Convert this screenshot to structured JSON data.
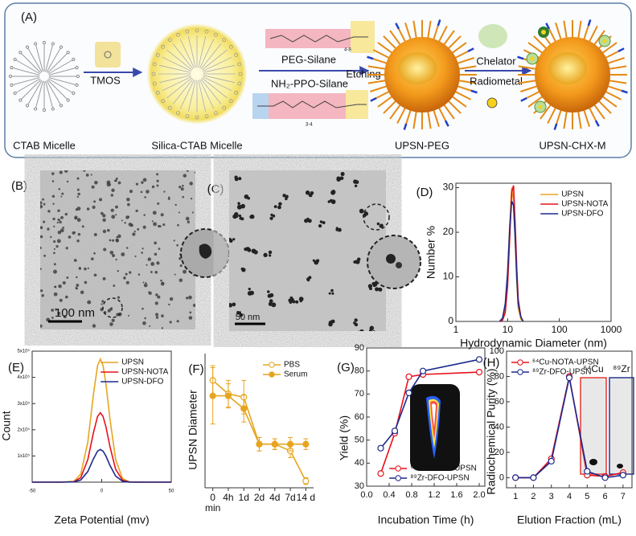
{
  "schematic": {
    "panel_a": {
      "label": "(A)",
      "tmos": "TMOS",
      "peg_silane": "PEG-Silane",
      "etching": "Etching",
      "ppo_silane": "NH₂-PPO-Silane",
      "peg_repeat": "4-8",
      "ppo_repeat": "3-4",
      "chelator": "Chelator",
      "radiometal": "Radiometal",
      "captions": [
        "CTAB Micelle",
        "Silica-CTAB Micelle",
        "UPSN-PEG",
        "UPSN-CHX-M"
      ]
    },
    "panel_b": {
      "label": "(B)",
      "scale": "100 nm"
    },
    "panel_c": {
      "label": "(C)",
      "scale": "50 nm"
    }
  },
  "chart_data": [
    {
      "panel": "(D)",
      "type": "line",
      "xscale": "log",
      "frame": "box",
      "x": [
        7,
        8,
        9,
        10,
        11,
        12,
        13,
        14,
        15,
        16,
        18,
        20
      ],
      "xlim": [
        1,
        1000
      ],
      "xticks": [
        1,
        10,
        100,
        1000
      ],
      "ylim": [
        0,
        31
      ],
      "yticks": [
        0,
        10,
        20,
        30
      ],
      "xlabel": "Hydrodynamic Diameter (nm)",
      "ylabel": "Number %",
      "legend": "top-right",
      "series": [
        {
          "name": "UPSN",
          "color": "#e6a520",
          "values": [
            0,
            0.5,
            3,
            10,
            22,
            30,
            27,
            18,
            9,
            3,
            0.5,
            0
          ]
        },
        {
          "name": "UPSN-NOTA",
          "color": "#e8101a",
          "values": [
            0,
            0.3,
            2,
            8,
            19,
            29,
            30.5,
            22,
            12,
            5,
            1,
            0
          ]
        },
        {
          "name": "UPSN-DFO",
          "color": "#1c2a8c",
          "values": [
            0,
            0.8,
            4,
            11,
            21,
            27,
            26,
            19,
            10,
            4,
            1,
            0
          ]
        }
      ]
    },
    {
      "panel": "(E)",
      "type": "line",
      "frame": "box",
      "x": [
        -50,
        -30,
        -20,
        -15,
        -10,
        -6,
        -3,
        -1,
        1,
        3,
        6,
        10,
        15,
        20,
        30,
        50
      ],
      "xlim": [
        -50,
        50
      ],
      "xticks": [
        -50,
        0,
        50
      ],
      "ylim": [
        0,
        500000
      ],
      "yticks": [
        {
          "value": 100000,
          "label": "1x10⁵"
        },
        {
          "value": 200000,
          "label": "2x10⁵"
        },
        {
          "value": 300000,
          "label": "3x10⁵"
        },
        {
          "value": 400000,
          "label": "4x10⁵"
        },
        {
          "value": 500000,
          "label": "5x10⁵"
        }
      ],
      "xlabel": "Zeta Potential (mv)",
      "ylabel": "Count",
      "legend": "top-right",
      "series": [
        {
          "name": "UPSN",
          "color": "#e6a520",
          "values": [
            0,
            0,
            3150,
            31000,
            152800,
            332300,
            444600,
            470000,
            444600,
            376000,
            237800,
            87400,
            13400,
            1000,
            0,
            0
          ]
        },
        {
          "name": "UPSN-NOTA",
          "color": "#e8101a",
          "values": [
            0,
            0,
            1800,
            17500,
            86100,
            187400,
            250700,
            265000,
            250700,
            212000,
            134100,
            49300,
            7600,
            600,
            0,
            0
          ]
        },
        {
          "name": "UPSN-DFO",
          "color": "#1c2a8c",
          "values": [
            0,
            0,
            800,
            8300,
            40600,
            88400,
            118300,
            125000,
            118300,
            100000,
            63300,
            23300,
            3600,
            300,
            0,
            0
          ]
        }
      ]
    },
    {
      "panel": "(F)",
      "type": "line",
      "frame": "open",
      "categories": [
        "0\nmin",
        "4h",
        "1d",
        "2d",
        "4d",
        "7d",
        "14 d"
      ],
      "ylim": [
        0,
        20
      ],
      "ylabel": "UPSN Diameter",
      "legend": "top-right",
      "series": [
        {
          "name": "PBS",
          "color": "#e6a520",
          "marker": "open",
          "values": [
            16,
            14,
            13.5,
            6.5,
            6.5,
            5.5,
            1
          ],
          "error": [
            2.2,
            2,
            2.5,
            1,
            0.8,
            1,
            0.5
          ]
        },
        {
          "name": "Serum",
          "color": "#e6a520",
          "marker": "filled",
          "values": [
            13.7,
            13.7,
            11.8,
            6.5,
            6.5,
            6.5,
            6.5
          ],
          "error": [
            4.2,
            1.8,
            2,
            1,
            0.8,
            1,
            0.8
          ]
        }
      ]
    },
    {
      "panel": "(G)",
      "type": "line",
      "frame": "box",
      "x": [
        0.25,
        0.5,
        0.75,
        1,
        2
      ],
      "xlim": [
        0,
        2.1
      ],
      "xticks": [
        {
          "value": 0,
          "label": "0.0"
        },
        0.4,
        0.8,
        1.2,
        1.6,
        {
          "value": 2,
          "label": "2.0"
        }
      ],
      "ylim": [
        30,
        90
      ],
      "yticks": [
        30,
        40,
        50,
        60,
        70,
        80,
        90
      ],
      "xlabel": "Incubation Time (h)",
      "ylabel": "Yield (%)",
      "legend": "bottom-right",
      "series": [
        {
          "name": "⁶⁴Cu-NOTA-UPSN",
          "color": "#e8101a",
          "marker": "open",
          "values": [
            35.5,
            53,
            77.5,
            78.5,
            79.5
          ]
        },
        {
          "name": "⁸⁹Zr-DFO-UPSN",
          "color": "#1c2a8c",
          "marker": "open",
          "values": [
            46.5,
            54,
            70.5,
            80,
            85
          ]
        }
      ]
    },
    {
      "panel": "(H)",
      "type": "line",
      "frame": "box",
      "x": [
        1,
        2,
        3,
        4,
        5,
        6,
        7
      ],
      "xlim": [
        0.5,
        7.5
      ],
      "xticks": [
        1,
        2,
        3,
        4,
        5,
        6,
        7
      ],
      "ylim": [
        -8,
        100
      ],
      "yticks": [
        0,
        20,
        40,
        60,
        80,
        100
      ],
      "xlabel": "Elution Fraction (mL)",
      "ylabel": "Radiochemical Purity (%)",
      "legend": "top-left",
      "inset_labels": [
        "⁶⁴Cu",
        "⁸⁹Zr"
      ],
      "series": [
        {
          "name": "⁶⁴Cu-NOTA-UPSN",
          "color": "#e8101a",
          "marker": "open",
          "values": [
            0,
            0,
            15,
            80,
            2,
            1,
            4
          ]
        },
        {
          "name": "⁸⁹Zr-DFO-UPSN",
          "color": "#1c2a8c",
          "marker": "open",
          "values": [
            0,
            0,
            13,
            79,
            5,
            0,
            2
          ]
        }
      ]
    }
  ]
}
